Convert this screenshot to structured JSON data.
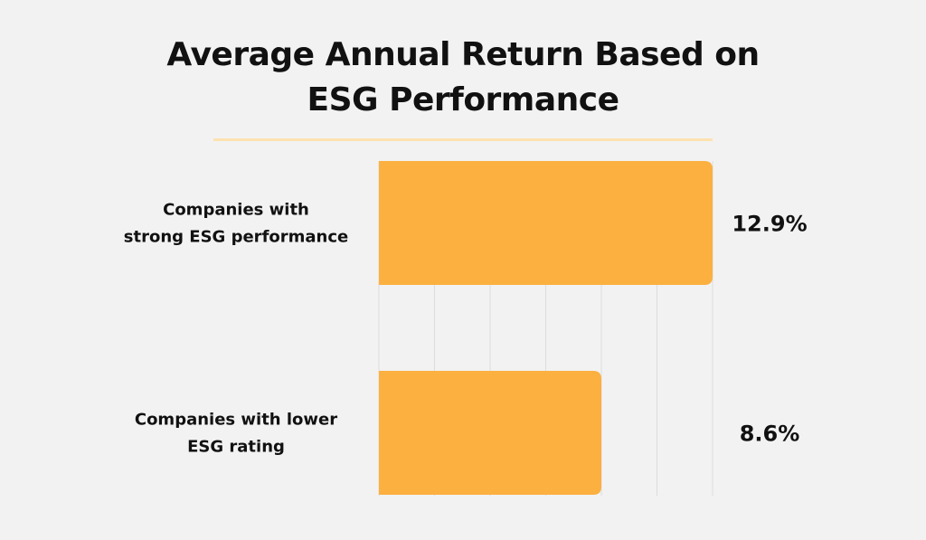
{
  "chart_data": {
    "type": "bar",
    "orientation": "horizontal",
    "title": "Average Annual Return Based on ESG Performance",
    "title_lines": [
      "Average Annual Return Based on",
      "ESG Performance"
    ],
    "categories": [
      [
        "Companies with",
        "strong ESG performance"
      ],
      [
        "Companies with lower",
        "ESG rating"
      ]
    ],
    "values": [
      12.9,
      8.6
    ],
    "value_labels": [
      "12.9%",
      "8.6%"
    ],
    "xlim": [
      0,
      12.9
    ],
    "grid": true,
    "gridline_count": 6,
    "xlabel": "",
    "ylabel": "",
    "colors": {
      "bar": "#fbb040",
      "grid": "#dcdcdc",
      "divider": "#fde2b0",
      "background": "#f2f2f2"
    }
  }
}
